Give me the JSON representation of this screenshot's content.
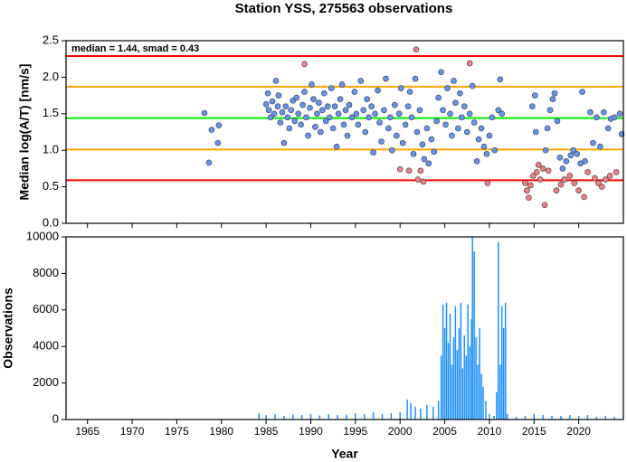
{
  "chart_data": [
    {
      "type": "scatter",
      "title": "Station YSS, 275563 observations",
      "ylabel": "Median log(A/T) [nm/s]",
      "annotation": "median = 1.44, smad = 0.43",
      "xlim": [
        1962.6,
        2025
      ],
      "xticks": [
        1965,
        1970,
        1975,
        1980,
        1985,
        1990,
        1995,
        2000,
        2005,
        2010,
        2015,
        2020
      ],
      "ylim": [
        0,
        2.5
      ],
      "yticks": [
        {
          "value": 0,
          "label": "0.0"
        },
        0.5,
        {
          "value": 1,
          "label": "1.0"
        },
        1.5,
        {
          "value": 2,
          "label": "2.0"
        },
        2.5
      ],
      "reference_lines": [
        {
          "value": 2.29,
          "color": "#ff0000"
        },
        {
          "value": 1.87,
          "color": "#ffa500"
        },
        {
          "value": 1.44,
          "color": "#00ee00"
        },
        {
          "value": 1.01,
          "color": "#ffa500"
        },
        {
          "value": 0.59,
          "color": "#ff0000"
        }
      ],
      "series": [
        {
          "color": "#6495ed",
          "x": [
            1978.1,
            1978.6,
            1978.9,
            1979.6,
            1979.7,
            1985.0,
            1985.2,
            1985.3,
            1985.5,
            1985.7,
            1985.9,
            1986.1,
            1986.3,
            1986.4,
            1986.6,
            1986.8,
            1987.0,
            1987.2,
            1987.4,
            1987.6,
            1987.8,
            1988.0,
            1988.2,
            1988.4,
            1988.6,
            1988.9,
            1989.1,
            1989.3,
            1989.5,
            1989.7,
            1989.9,
            1990.1,
            1990.3,
            1990.5,
            1990.7,
            1990.9,
            1991.1,
            1991.3,
            1991.5,
            1991.7,
            1991.9,
            1992.1,
            1992.3,
            1992.5,
            1992.7,
            1992.9,
            1993.1,
            1993.3,
            1993.5,
            1993.7,
            1993.9,
            1994.1,
            1994.3,
            1994.6,
            1994.9,
            1995.1,
            1995.3,
            1995.6,
            1995.9,
            1996.1,
            1996.3,
            1996.5,
            1996.8,
            1997.0,
            1997.2,
            1997.5,
            1997.7,
            1997.9,
            1998.2,
            1998.4,
            1998.7,
            1998.9,
            1999.1,
            1999.4,
            1999.6,
            1999.9,
            2000.1,
            2000.3,
            2000.6,
            2000.9,
            2001.1,
            2001.3,
            2001.5,
            2001.7,
            2001.9,
            2002.2,
            2002.5,
            2002.7,
            2003.0,
            2003.2,
            2003.5,
            2003.8,
            2004.1,
            2004.3,
            2004.6,
            2004.8,
            2005.1,
            2005.3,
            2005.6,
            2005.8,
            2006.0,
            2006.2,
            2006.5,
            2006.7,
            2006.9,
            2007.2,
            2007.5,
            2007.8,
            2008.1,
            2008.3,
            2008.6,
            2008.8,
            2009.1,
            2009.4,
            2009.7,
            2010.0,
            2010.3,
            2010.6,
            2011.0,
            2011.2,
            2011.4,
            2014.8,
            2015.1,
            2015.2,
            2016.3,
            2016.5,
            2016.8,
            2017.1,
            2017.3,
            2017.6,
            2017.9,
            2018.2,
            2018.6,
            2019.1,
            2019.4,
            2019.8,
            2020.2,
            2020.4,
            2020.7,
            2021.3,
            2021.6,
            2022.0,
            2022.4,
            2022.8,
            2023.3,
            2023.6,
            2024.0,
            2024.6,
            2024.8
          ],
          "values": [
            1.51,
            0.83,
            1.28,
            1.1,
            1.34,
            1.63,
            1.78,
            1.55,
            1.45,
            1.67,
            1.5,
            1.95,
            1.6,
            1.75,
            1.38,
            1.52,
            1.1,
            1.6,
            1.45,
            1.3,
            1.55,
            1.68,
            1.4,
            1.72,
            1.5,
            1.35,
            1.62,
            1.8,
            1.45,
            1.2,
            1.58,
            1.9,
            1.7,
            1.32,
            1.5,
            1.65,
            1.25,
            1.55,
            1.78,
            1.4,
            1.6,
            1.45,
            1.85,
            1.3,
            1.6,
            1.05,
            1.5,
            1.7,
            1.9,
            1.35,
            1.55,
            1.2,
            1.62,
            1.45,
            1.8,
            1.5,
            1.35,
            1.95,
            1.55,
            1.25,
            1.7,
            1.45,
            1.6,
            0.97,
            1.5,
            1.82,
            1.38,
            1.12,
            1.55,
            1.98,
            1.3,
            1.45,
            1.0,
            1.62,
            1.2,
            1.5,
            1.85,
            1.1,
            1.35,
            1.6,
            1.8,
            1.45,
            0.95,
            1.98,
            1.25,
            1.55,
            1.08,
            0.88,
            1.3,
            0.82,
            1.15,
            0.98,
            1.4,
            1.72,
            2.07,
            1.55,
            1.35,
            1.85,
            1.5,
            1.2,
            1.95,
            1.65,
            1.3,
            1.78,
            1.45,
            1.6,
            1.25,
            1.5,
            1.88,
            1.38,
            0.85,
            1.15,
            1.3,
            1.05,
            0.95,
            1.2,
            1.45,
            1.0,
            1.55,
            1.97,
            1.5,
            1.6,
            1.75,
            1.25,
            1.0,
            1.3,
            1.55,
            1.7,
            1.78,
            1.4,
            0.9,
            0.75,
            0.85,
            0.93,
            1.0,
            0.95,
            0.82,
            1.8,
            0.85,
            1.52,
            1.1,
            1.45,
            1.05,
            1.52,
            1.3,
            1.43,
            1.45,
            1.5,
            1.22
          ]
        },
        {
          "color": "#f08080",
          "x": [
            1989.3,
            2000.0,
            2001.0,
            2001.8,
            2002.0,
            2002.3,
            2002.6,
            2007.8,
            2009.8,
            2014.0,
            2014.2,
            2014.4,
            2014.6,
            2014.9,
            2015.3,
            2015.5,
            2015.7,
            2016.0,
            2016.2,
            2016.6,
            2017.5,
            2018.0,
            2018.4,
            2019.0,
            2019.5,
            2020.0,
            2020.6,
            2021.0,
            2021.8,
            2022.2,
            2022.6,
            2023.0,
            2023.5,
            2024.2
          ],
          "values": [
            2.18,
            0.74,
            0.72,
            2.38,
            0.6,
            0.72,
            0.57,
            2.19,
            0.55,
            0.55,
            0.45,
            0.35,
            0.52,
            0.65,
            0.7,
            0.8,
            0.6,
            0.75,
            0.25,
            0.72,
            0.45,
            0.53,
            0.6,
            0.65,
            0.55,
            0.45,
            0.36,
            0.7,
            0.62,
            0.55,
            0.5,
            0.6,
            0.65,
            0.7
          ]
        }
      ]
    },
    {
      "type": "bar",
      "xlabel": "Year",
      "ylabel": "Observations",
      "xlim": [
        1962.6,
        2025
      ],
      "xticks": [
        1965,
        1970,
        1975,
        1980,
        1985,
        1990,
        1995,
        2000,
        2005,
        2010,
        2015,
        2020
      ],
      "ylim": [
        0,
        10000
      ],
      "yticks": [
        0,
        2000,
        4000,
        6000,
        8000,
        10000
      ],
      "color": "#1e90ff",
      "x": [
        1984.2,
        1985,
        1986,
        1987,
        1988,
        1989,
        1990,
        1991,
        1992,
        1993,
        1994,
        1995,
        1996,
        1997,
        1998,
        1999,
        2000,
        2000.8,
        2001.2,
        2001.7,
        2002.3,
        2003,
        2003.7,
        2004.3,
        2004.6,
        2004.8,
        2005.0,
        2005.2,
        2005.4,
        2005.6,
        2005.8,
        2006.0,
        2006.2,
        2006.4,
        2006.6,
        2006.8,
        2007.0,
        2007.2,
        2007.4,
        2007.6,
        2007.8,
        2008.0,
        2008.1,
        2008.3,
        2008.5,
        2008.7,
        2008.9,
        2009.1,
        2009.3,
        2009.6,
        2010.0,
        2010.5,
        2010.8,
        2011.0,
        2011.2,
        2011.4,
        2011.6,
        2011.8,
        2012.0,
        2013,
        2014,
        2015,
        2016,
        2017,
        2018,
        2019,
        2020,
        2021,
        2022,
        2023,
        2024
      ],
      "values": [
        350,
        250,
        300,
        200,
        280,
        250,
        300,
        220,
        300,
        250,
        280,
        350,
        300,
        400,
        300,
        350,
        400,
        1100,
        900,
        700,
        600,
        800,
        700,
        1000,
        3500,
        6300,
        5000,
        6400,
        4200,
        5800,
        3000,
        4500,
        6200,
        3800,
        5000,
        6400,
        2800,
        4600,
        3500,
        6300,
        4000,
        5500,
        10000,
        9200,
        4500,
        3000,
        5000,
        2500,
        1800,
        1000,
        300,
        200,
        1500,
        9700,
        3000,
        6200,
        5000,
        6400,
        300,
        150,
        200,
        300,
        250,
        200,
        200,
        250,
        200,
        250,
        150,
        200,
        150
      ]
    }
  ]
}
